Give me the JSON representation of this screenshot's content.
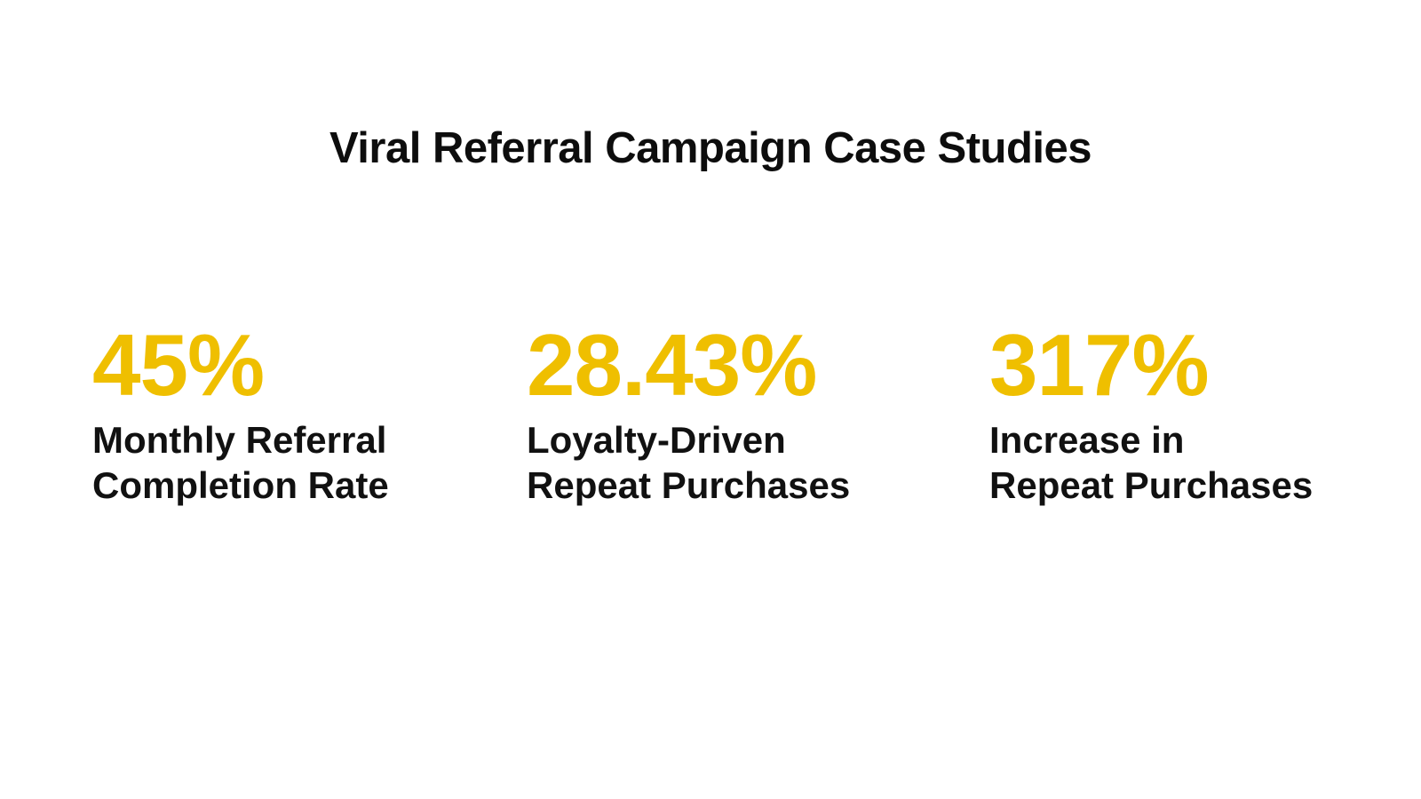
{
  "slide": {
    "title": "Viral Referral Campaign Case Studies",
    "accent_color": "#efbf00",
    "text_color": "#111111",
    "background_color": "#ffffff",
    "stats": [
      {
        "value": "45%",
        "label_line1": "Monthly Referral",
        "label_line2": "Completion Rate"
      },
      {
        "value": "28.43%",
        "label_line1": "Loyalty-Driven",
        "label_line2": "Repeat Purchases"
      },
      {
        "value": "317%",
        "label_line1": "Increase in",
        "label_line2": "Repeat Purchases"
      }
    ]
  }
}
